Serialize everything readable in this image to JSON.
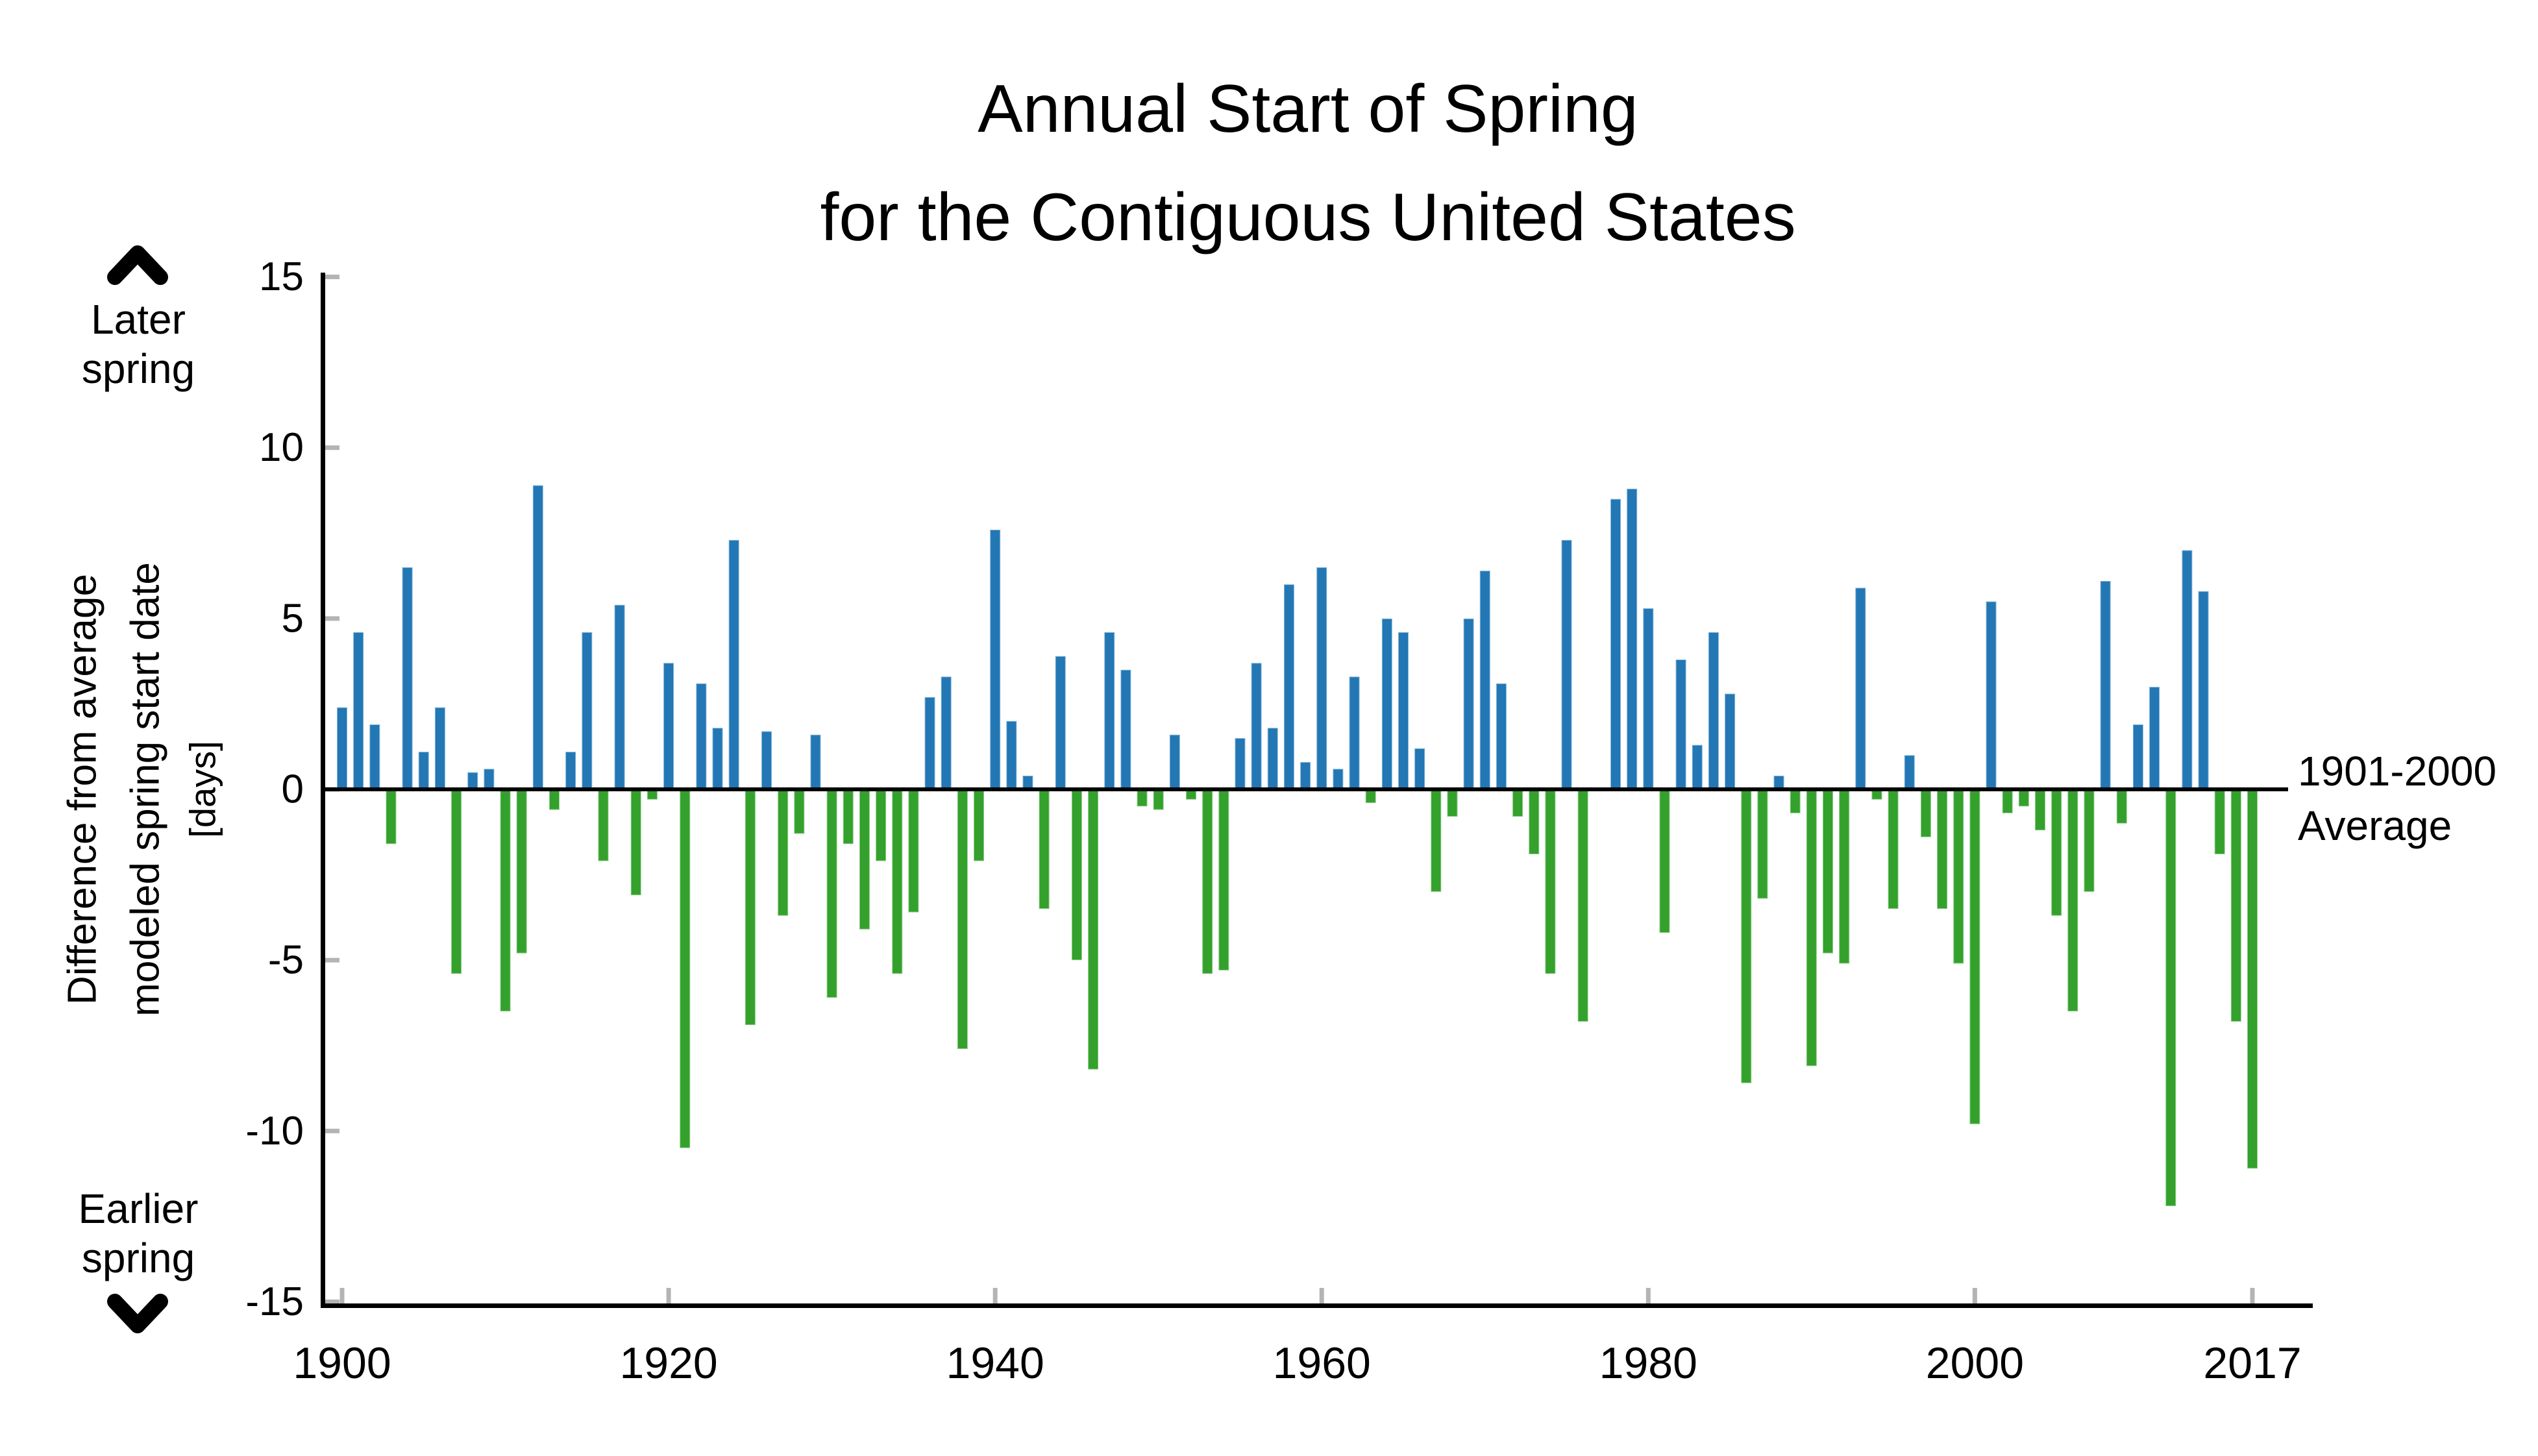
{
  "title": {
    "line1": "Annual Start of Spring",
    "line2": "for the Contiguous United States"
  },
  "y_axis": {
    "label_line1": "Difference from average",
    "label_line2": "modeled spring start date",
    "label_line3": "[days]",
    "tick_values": [
      15,
      10,
      5,
      0,
      -5,
      -10,
      -15
    ],
    "upper_annotation_line1": "Later",
    "upper_annotation_line2": "spring",
    "lower_annotation_line1": "Earlier",
    "lower_annotation_line2": "spring"
  },
  "x_axis": {
    "tick_years": [
      1900,
      1920,
      1940,
      1960,
      1980,
      2000,
      2017
    ]
  },
  "baseline_annotation": {
    "line1": "1901-2000",
    "line2": "Average"
  },
  "colors": {
    "later_spring_bar": "#2277b4",
    "earlier_spring_bar": "#33a12b",
    "axis": "#000000",
    "tick": "#b4b4b4"
  },
  "chart_data": {
    "type": "bar",
    "title": "Annual Start of Spring for the Contiguous United States",
    "ylabel": "Difference from average modeled spring start date [days]",
    "ylim": [
      -15,
      15
    ],
    "x_range": [
      1900,
      2017
    ],
    "grid": false,
    "legend": "none",
    "positive_meaning": "Later spring",
    "negative_meaning": "Earlier spring",
    "baseline_label": "1901-2000 Average",
    "years": [
      1900,
      1901,
      1902,
      1903,
      1904,
      1905,
      1906,
      1907,
      1908,
      1909,
      1910,
      1911,
      1912,
      1913,
      1914,
      1915,
      1916,
      1917,
      1918,
      1919,
      1920,
      1921,
      1922,
      1923,
      1924,
      1925,
      1926,
      1927,
      1928,
      1929,
      1930,
      1931,
      1932,
      1933,
      1934,
      1935,
      1936,
      1937,
      1938,
      1939,
      1940,
      1941,
      1942,
      1943,
      1944,
      1945,
      1946,
      1947,
      1948,
      1949,
      1950,
      1951,
      1952,
      1953,
      1954,
      1955,
      1956,
      1957,
      1958,
      1959,
      1960,
      1961,
      1962,
      1963,
      1964,
      1965,
      1966,
      1967,
      1968,
      1969,
      1970,
      1971,
      1972,
      1973,
      1974,
      1975,
      1976,
      1977,
      1978,
      1979,
      1980,
      1981,
      1982,
      1983,
      1984,
      1985,
      1986,
      1987,
      1988,
      1989,
      1990,
      1991,
      1992,
      1993,
      1994,
      1995,
      1996,
      1997,
      1998,
      1999,
      2000,
      2001,
      2002,
      2003,
      2004,
      2005,
      2006,
      2007,
      2008,
      2009,
      2010,
      2011,
      2012,
      2013,
      2014,
      2015,
      2016,
      2017
    ],
    "values": [
      2.4,
      4.6,
      1.9,
      -1.6,
      6.5,
      1.1,
      2.4,
      -5.4,
      0.5,
      0.6,
      -6.5,
      -4.8,
      8.9,
      -0.6,
      1.1,
      4.6,
      -2.1,
      5.4,
      -3.1,
      -0.3,
      3.7,
      -10.5,
      3.1,
      1.8,
      7.3,
      -6.9,
      1.7,
      -3.7,
      -1.3,
      1.6,
      -6.1,
      -1.6,
      -4.1,
      -2.1,
      -5.4,
      -3.6,
      2.7,
      3.3,
      -7.6,
      -2.1,
      7.6,
      2.0,
      0.4,
      -3.5,
      3.9,
      -5.0,
      -8.2,
      4.6,
      3.5,
      -0.5,
      -0.6,
      1.6,
      -0.3,
      -5.4,
      -5.3,
      1.5,
      3.7,
      1.8,
      6.0,
      0.8,
      6.5,
      0.6,
      3.3,
      -0.4,
      5.0,
      4.6,
      1.2,
      -3.0,
      -0.8,
      5.0,
      6.4,
      3.1,
      -0.8,
      -1.9,
      -5.4,
      7.3,
      -6.8,
      0.0,
      8.5,
      8.8,
      5.3,
      -4.2,
      3.8,
      1.3,
      4.6,
      2.8,
      -8.6,
      -3.2,
      0.4,
      -0.7,
      -8.1,
      -4.8,
      -5.1,
      5.9,
      -0.3,
      -3.5,
      1.0,
      -1.4,
      -3.5,
      -5.1,
      -9.8,
      5.5,
      -0.7,
      -0.5,
      -1.2,
      -3.7,
      -6.5,
      -3.0,
      6.1,
      -1.0,
      1.9,
      3.0,
      -12.2,
      7.0,
      5.8,
      -1.9,
      -6.8,
      -11.1
    ]
  }
}
